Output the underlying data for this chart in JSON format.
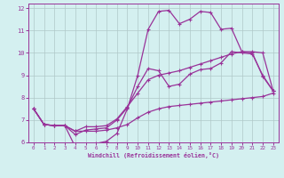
{
  "xlabel": "Windchill (Refroidissement éolien,°C)",
  "background_color": "#d4f0f0",
  "line_color": "#993399",
  "grid_color": "#b0c8c8",
  "xlim": [
    -0.5,
    23.5
  ],
  "ylim": [
    6,
    12.2
  ],
  "xticks": [
    0,
    1,
    2,
    3,
    4,
    5,
    6,
    7,
    8,
    9,
    10,
    11,
    12,
    13,
    14,
    15,
    16,
    17,
    18,
    19,
    20,
    21,
    22,
    23
  ],
  "yticks": [
    6,
    7,
    8,
    9,
    10,
    11,
    12
  ],
  "line1_x": [
    0,
    1,
    2,
    3,
    4,
    5,
    6,
    7,
    8,
    9,
    10,
    11,
    12,
    13,
    14,
    15,
    16,
    17,
    18,
    19,
    20,
    21,
    22,
    23
  ],
  "line1_y": [
    7.5,
    6.8,
    6.75,
    6.75,
    5.8,
    5.9,
    5.95,
    6.05,
    6.4,
    7.5,
    9.0,
    11.05,
    11.85,
    11.9,
    11.3,
    11.5,
    11.85,
    11.8,
    11.05,
    11.1,
    10.05,
    10.0,
    8.95,
    8.3
  ],
  "line2_x": [
    0,
    1,
    2,
    3,
    4,
    5,
    6,
    7,
    8,
    9,
    10,
    11,
    12,
    13,
    14,
    15,
    16,
    17,
    18,
    19,
    20,
    21,
    22,
    23
  ],
  "line2_y": [
    7.5,
    6.8,
    6.75,
    6.75,
    6.35,
    6.55,
    6.6,
    6.65,
    7.0,
    7.55,
    8.5,
    9.3,
    9.2,
    8.5,
    8.6,
    9.05,
    9.25,
    9.3,
    9.55,
    10.05,
    10.0,
    9.95,
    9.0,
    8.3
  ],
  "line3_x": [
    0,
    1,
    2,
    3,
    4,
    5,
    6,
    7,
    8,
    9,
    10,
    11,
    12,
    13,
    14,
    15,
    16,
    17,
    18,
    19,
    20,
    21,
    22,
    23
  ],
  "line3_y": [
    7.5,
    6.8,
    6.75,
    6.75,
    6.5,
    6.7,
    6.7,
    6.75,
    7.05,
    7.6,
    8.2,
    8.8,
    9.0,
    9.1,
    9.2,
    9.35,
    9.5,
    9.65,
    9.8,
    9.95,
    10.05,
    10.05,
    10.0,
    8.3
  ],
  "line4_x": [
    0,
    1,
    2,
    3,
    4,
    5,
    6,
    7,
    8,
    9,
    10,
    11,
    12,
    13,
    14,
    15,
    16,
    17,
    18,
    19,
    20,
    21,
    22,
    23
  ],
  "line4_y": [
    7.5,
    6.8,
    6.75,
    6.75,
    6.5,
    6.5,
    6.5,
    6.55,
    6.65,
    6.8,
    7.1,
    7.35,
    7.5,
    7.6,
    7.65,
    7.7,
    7.75,
    7.8,
    7.85,
    7.9,
    7.95,
    8.0,
    8.05,
    8.2
  ],
  "marker": "+",
  "markersize": 3.5,
  "linewidth": 0.9
}
